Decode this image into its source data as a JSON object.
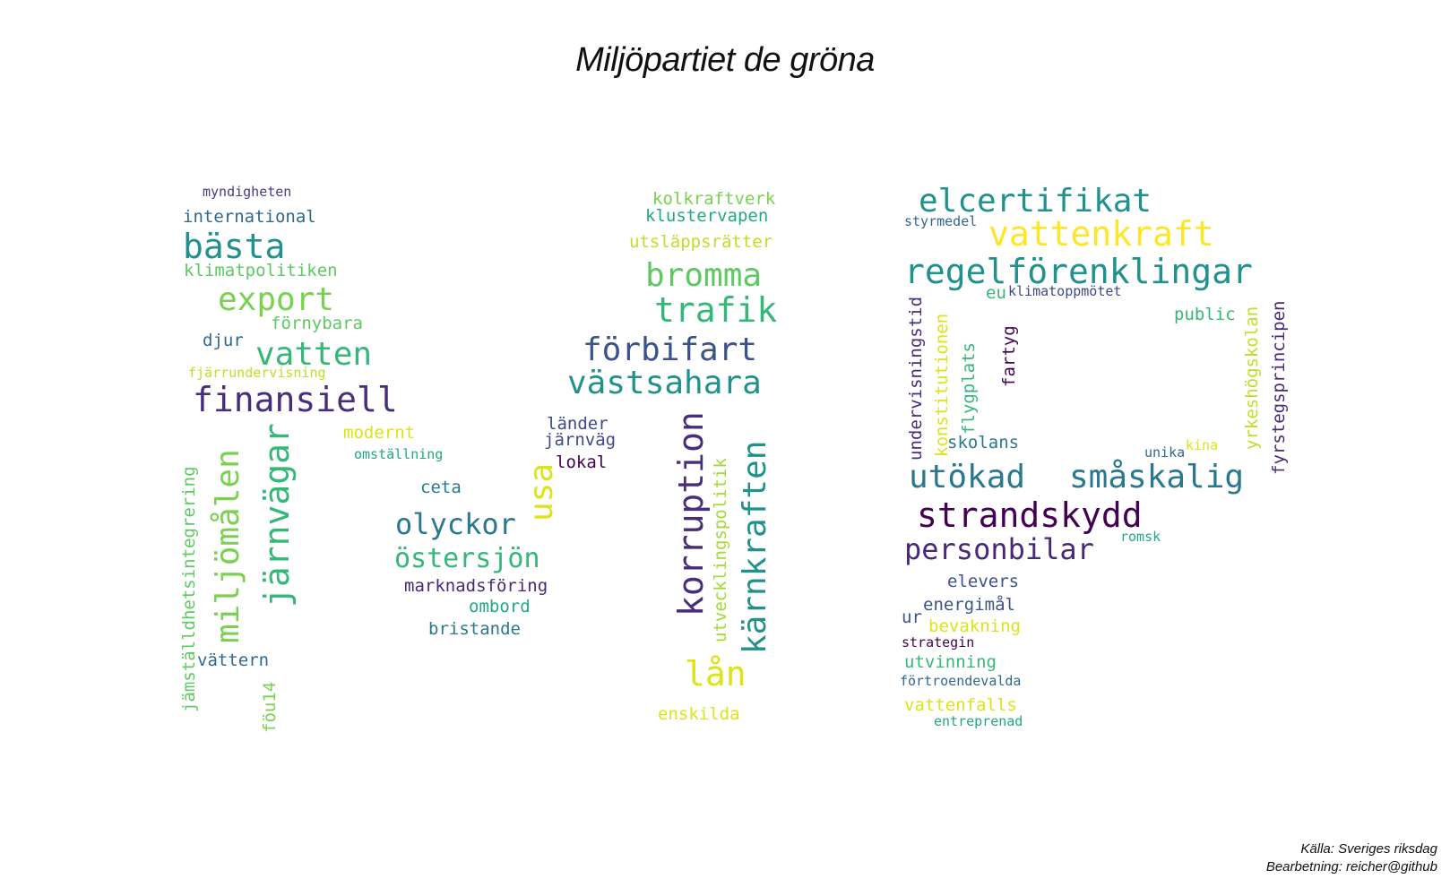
{
  "title": "Miljöpartiet de gröna",
  "credits": {
    "source": "Källa: Sveriges riksdag",
    "processing": "Bearbetning: reicher@github"
  },
  "words": [
    {
      "text": "myndigheten",
      "color": "#433e85"
    },
    {
      "text": "international",
      "color": "#31688e"
    },
    {
      "text": "bästa",
      "color": "#21918c"
    },
    {
      "text": "klimatpolitiken",
      "color": "#5ec962"
    },
    {
      "text": "export",
      "color": "#7ad151"
    },
    {
      "text": "förnybara",
      "color": "#5ec962"
    },
    {
      "text": "djur",
      "color": "#31688e"
    },
    {
      "text": "vatten",
      "color": "#35b779"
    },
    {
      "text": "fjärrundervisning",
      "color": "#bddf26"
    },
    {
      "text": "finansiell",
      "color": "#472d7b"
    },
    {
      "text": "modernt",
      "color": "#dde318"
    },
    {
      "text": "omställning",
      "color": "#22a884"
    },
    {
      "text": "jämställdhetsintegrering",
      "color": "#5ec962"
    },
    {
      "text": "miljömålen",
      "color": "#7ad151"
    },
    {
      "text": "järnvägar",
      "color": "#35b779"
    },
    {
      "text": "ceta",
      "color": "#2a788e"
    },
    {
      "text": "olyckor",
      "color": "#2a788e"
    },
    {
      "text": "östersjön",
      "color": "#35b779"
    },
    {
      "text": "marknadsföring",
      "color": "#482878"
    },
    {
      "text": "ombord",
      "color": "#22a884"
    },
    {
      "text": "bristande",
      "color": "#2a788e"
    },
    {
      "text": "vättern",
      "color": "#31688e"
    },
    {
      "text": "föu14",
      "color": "#7ad151"
    },
    {
      "text": "kolkraftverk",
      "color": "#7ad151"
    },
    {
      "text": "klustervapen",
      "color": "#22a884"
    },
    {
      "text": "utsläppsrätter",
      "color": "#bddf26"
    },
    {
      "text": "bromma",
      "color": "#5ec962"
    },
    {
      "text": "trafik",
      "color": "#35b779"
    },
    {
      "text": "förbifart",
      "color": "#3b528b"
    },
    {
      "text": "västsahara",
      "color": "#21918c"
    },
    {
      "text": "länder",
      "color": "#3e4989"
    },
    {
      "text": "järnväg",
      "color": "#3e4989"
    },
    {
      "text": "lokal",
      "color": "#440154"
    },
    {
      "text": "usa",
      "color": "#dde318"
    },
    {
      "text": "korruption",
      "color": "#472d7b"
    },
    {
      "text": "utvecklingspolitik",
      "color": "#a0da39"
    },
    {
      "text": "kärnkraften",
      "color": "#21918c"
    },
    {
      "text": "lån",
      "color": "#dde318"
    },
    {
      "text": "enskilda",
      "color": "#dde318"
    },
    {
      "text": "elcertifikat",
      "color": "#21918c"
    },
    {
      "text": "styrmedel",
      "color": "#31688e"
    },
    {
      "text": "vattenkraft",
      "color": "#fde725"
    },
    {
      "text": "regelförenklingar",
      "color": "#21918c"
    },
    {
      "text": "eu",
      "color": "#35b779"
    },
    {
      "text": "klimatoppmötet",
      "color": "#3e4989"
    },
    {
      "text": "public",
      "color": "#35b779"
    },
    {
      "text": "undervisningstid",
      "color": "#472d7b"
    },
    {
      "text": "konstitutionen",
      "color": "#dde318"
    },
    {
      "text": "flygplats",
      "color": "#35b779"
    },
    {
      "text": "fartyg",
      "color": "#440154"
    },
    {
      "text": "yrkeshögskolan",
      "color": "#bddf26"
    },
    {
      "text": "fyrstegsprincipen",
      "color": "#482878"
    },
    {
      "text": "skolans",
      "color": "#2a788e"
    },
    {
      "text": "unika",
      "color": "#31688e"
    },
    {
      "text": "kina",
      "color": "#dde318"
    },
    {
      "text": "utökad",
      "color": "#2a788e"
    },
    {
      "text": "småskalig",
      "color": "#2a788e"
    },
    {
      "text": "strandskydd",
      "color": "#440154"
    },
    {
      "text": "romsk",
      "color": "#22a884"
    },
    {
      "text": "personbilar",
      "color": "#482878"
    },
    {
      "text": "elevers",
      "color": "#3b528b"
    },
    {
      "text": "energimål",
      "color": "#3b528b"
    },
    {
      "text": "ur",
      "color": "#3b528b"
    },
    {
      "text": "bevakning",
      "color": "#dde318"
    },
    {
      "text": "strategin",
      "color": "#440154"
    },
    {
      "text": "utvinning",
      "color": "#35b779"
    },
    {
      "text": "förtroendevalda",
      "color": "#31688e"
    },
    {
      "text": "vattenfalls",
      "color": "#dde318"
    },
    {
      "text": "entreprenad",
      "color": "#22a884"
    }
  ]
}
